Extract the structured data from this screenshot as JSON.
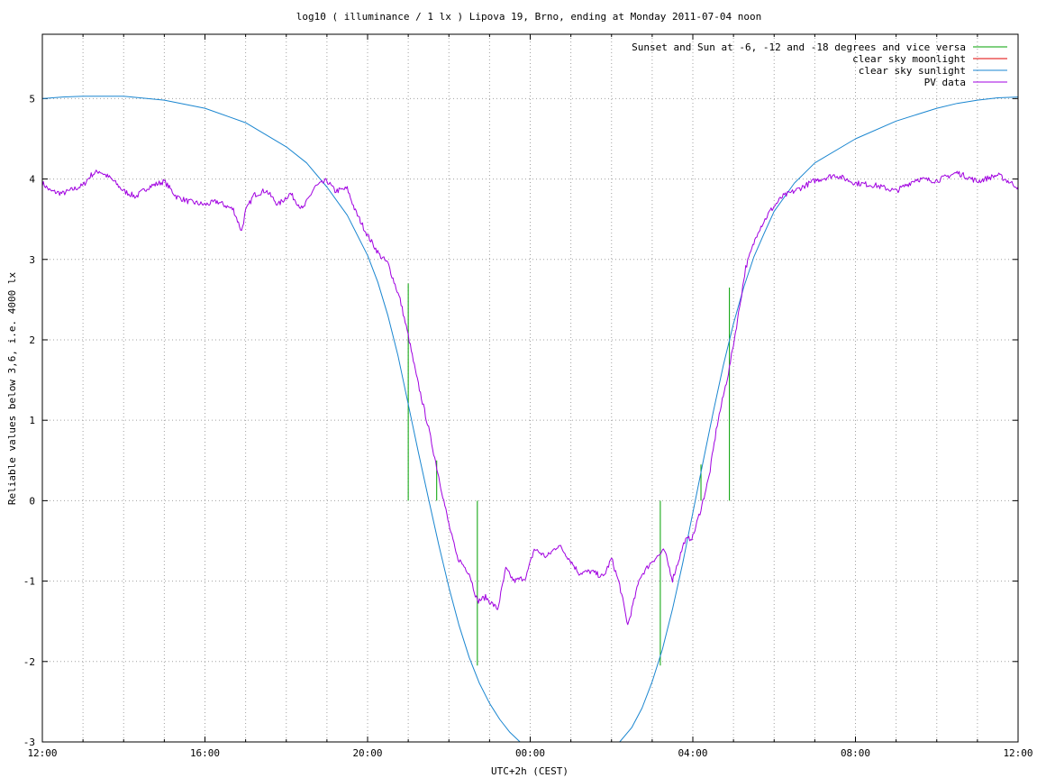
{
  "chart_data": {
    "type": "line",
    "title": "log10 ( illuminance / 1 lx ) Lipova 19, Brno, ending at Monday 2011-07-04 noon",
    "xlabel": "UTC+2h (CEST)",
    "ylabel": "Reliable values below 3,6, i.e. 4000 lx",
    "x_unit": "hours after 12:00 (2011-07-03)",
    "xlim": [
      0,
      24
    ],
    "ylim": [
      -3,
      5.8
    ],
    "x_ticks": [
      "12:00",
      "16:00",
      "20:00",
      "00:00",
      "04:00",
      "08:00",
      "12:00"
    ],
    "y_ticks": [
      "-3",
      "-2",
      "-1",
      "0",
      "1",
      "2",
      "3",
      "4",
      "5"
    ],
    "grid": true,
    "legend_position": "top-right",
    "legend": [
      {
        "label": "Sunset and Sun at -6, -12 and -18 degrees and vice versa",
        "color": "#00a000"
      },
      {
        "label": "clear sky moonlight",
        "color": "#e00000"
      },
      {
        "label": "clear sky sunlight",
        "color": "#1a86d0"
      },
      {
        "label": "PV data",
        "color": "#a000e0"
      }
    ],
    "series": [
      {
        "name": "Sunset and Sun at -6, -12 and -18 degrees and vice versa",
        "kind": "impulses",
        "color": "#00a000",
        "points": [
          {
            "x": 9.0,
            "y": 2.7
          },
          {
            "x": 9.7,
            "y": 0.5
          },
          {
            "x": 10.7,
            "y": -2.05
          },
          {
            "x": 15.2,
            "y": -2.05
          },
          {
            "x": 16.2,
            "y": 0.45
          },
          {
            "x": 16.9,
            "y": 2.65
          }
        ]
      },
      {
        "name": "clear sky sunlight",
        "color": "#1a86d0",
        "x": [
          0,
          0.5,
          1,
          1.5,
          2,
          3,
          4,
          5,
          6,
          6.5,
          7,
          7.5,
          8,
          8.25,
          8.5,
          8.75,
          9,
          9.25,
          9.5,
          9.75,
          10,
          10.25,
          10.5,
          10.75,
          11,
          11.25,
          11.5,
          11.75,
          12,
          14,
          14.2,
          14.5,
          14.75,
          15,
          15.25,
          15.5,
          15.75,
          16,
          16.25,
          16.5,
          16.75,
          17,
          17.25,
          17.5,
          17.75,
          18,
          18.5,
          19,
          20,
          21,
          22,
          22.5,
          23,
          23.5,
          24
        ],
        "y": [
          5.0,
          5.02,
          5.03,
          5.03,
          5.03,
          4.98,
          4.88,
          4.7,
          4.4,
          4.2,
          3.9,
          3.55,
          3.05,
          2.72,
          2.3,
          1.8,
          1.2,
          0.6,
          0.02,
          -0.55,
          -1.08,
          -1.55,
          -1.95,
          -2.27,
          -2.52,
          -2.72,
          -2.88,
          -3.0,
          -3.1,
          -3.1,
          -3.0,
          -2.82,
          -2.58,
          -2.25,
          -1.85,
          -1.35,
          -0.78,
          -0.15,
          0.48,
          1.1,
          1.68,
          2.2,
          2.65,
          3.03,
          3.32,
          3.6,
          3.95,
          4.2,
          4.5,
          4.72,
          4.88,
          4.94,
          4.98,
          5.01,
          5.02
        ]
      },
      {
        "name": "PV data",
        "color": "#a000e0",
        "x": [
          0,
          0.2,
          0.5,
          1,
          1.2,
          1.4,
          1.7,
          2,
          2.3,
          2.6,
          3,
          3.3,
          3.6,
          4,
          4.3,
          4.7,
          4.9,
          5.0,
          5.2,
          5.5,
          5.8,
          6.1,
          6.4,
          6.7,
          7,
          7.2,
          7.5,
          7.7,
          8,
          8.3,
          8.5,
          8.8,
          9.0,
          9.2,
          9.5,
          9.7,
          10,
          10.2,
          10.5,
          10.7,
          10.9,
          11.2,
          11.4,
          11.6,
          11.9,
          12.1,
          12.4,
          12.7,
          12.9,
          13.2,
          13.5,
          13.8,
          14.0,
          14.2,
          14.4,
          14.7,
          15.0,
          15.3,
          15.5,
          15.8,
          16.0,
          16.2,
          16.4,
          16.6,
          16.9,
          17.1,
          17.3,
          17.6,
          17.9,
          18.2,
          18.5,
          19,
          19.5,
          20,
          20.5,
          21,
          21.5,
          22,
          22.5,
          23,
          23.5,
          24
        ],
        "y": [
          3.95,
          3.85,
          3.82,
          3.92,
          4.05,
          4.1,
          4.0,
          3.85,
          3.78,
          3.9,
          3.97,
          3.78,
          3.72,
          3.68,
          3.72,
          3.62,
          3.35,
          3.6,
          3.8,
          3.86,
          3.68,
          3.82,
          3.62,
          3.9,
          3.98,
          3.85,
          3.88,
          3.6,
          3.3,
          3.05,
          2.95,
          2.5,
          2.05,
          1.55,
          0.9,
          0.42,
          -0.3,
          -0.7,
          -0.9,
          -1.25,
          -1.2,
          -1.35,
          -0.85,
          -1.0,
          -0.95,
          -0.6,
          -0.7,
          -0.55,
          -0.68,
          -0.9,
          -0.88,
          -0.95,
          -0.72,
          -1.05,
          -1.55,
          -0.95,
          -0.75,
          -0.62,
          -0.98,
          -0.5,
          -0.45,
          -0.1,
          0.3,
          0.95,
          1.65,
          2.25,
          2.9,
          3.35,
          3.6,
          3.78,
          3.85,
          3.98,
          4.05,
          3.95,
          3.92,
          3.85,
          4.0,
          3.98,
          4.08,
          3.97,
          4.05,
          3.9
        ]
      }
    ]
  }
}
